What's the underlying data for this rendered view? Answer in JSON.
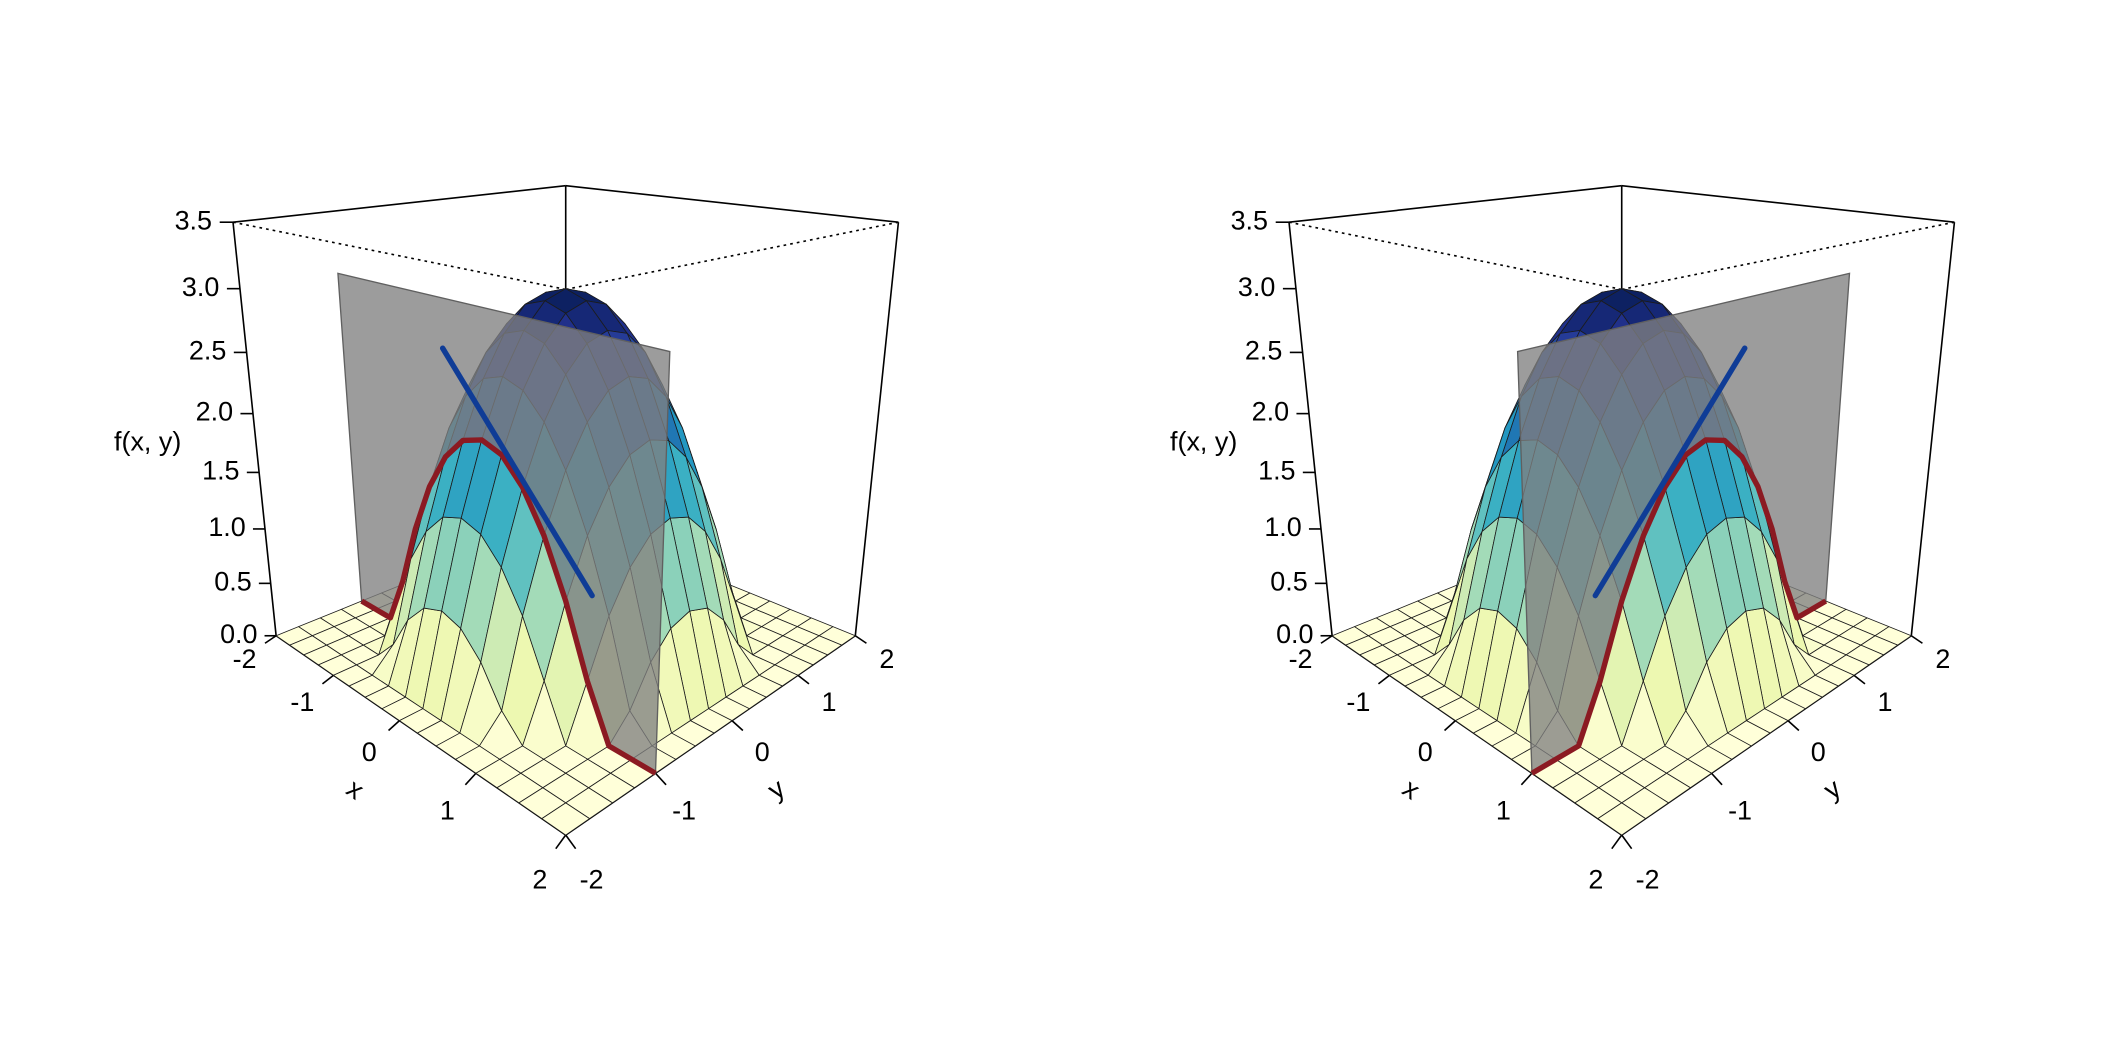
{
  "chart_data": [
    {
      "type": "surface3d",
      "xlabel": "x",
      "ylabel": "y",
      "zlabel": "f(x, y)",
      "xlim": [
        -2,
        2
      ],
      "ylim": [
        -2,
        2
      ],
      "zlim": [
        0,
        3.5
      ],
      "xticks": [
        -2,
        -1,
        0,
        1,
        2
      ],
      "yticks": [
        -2,
        -1,
        0,
        1,
        2
      ],
      "zticks": [
        {
          "value": 0,
          "label": "0.0"
        },
        0.5,
        {
          "value": 1,
          "label": "1.0"
        },
        1.5,
        {
          "value": 2,
          "label": "2.0"
        },
        2.5,
        {
          "value": 3,
          "label": "3.0"
        },
        3.5
      ],
      "colors": [
        "#ffffd9",
        "#edf8b1",
        "#c7e9b4",
        "#7fcdbb",
        "#41b6c4",
        "#1d91c0",
        "#225ea8",
        "#253494",
        "#081d58"
      ],
      "x": [
        -2,
        -1.75,
        -1.5,
        -1.25,
        -1,
        -0.75,
        -0.5,
        -0.25,
        0,
        0.25,
        0.5,
        0.75,
        1,
        1.25,
        1.5,
        1.75,
        2
      ],
      "y": [
        -2,
        -1.75,
        -1.5,
        -1.25,
        -1,
        -0.75,
        -0.5,
        -0.25,
        0,
        0.25,
        0.5,
        0.75,
        1,
        1.25,
        1.5,
        1.75,
        2
      ],
      "z": [
        [
          0,
          0,
          0,
          0,
          0,
          0,
          0,
          0,
          0,
          0,
          0,
          0,
          0,
          0,
          0,
          0,
          0
        ],
        [
          0,
          0,
          0,
          0,
          0,
          0,
          0,
          0,
          0,
          0,
          0,
          0,
          0,
          0,
          0,
          0,
          0
        ],
        [
          0,
          0,
          0,
          0,
          0,
          0.19,
          0.5,
          0.69,
          0.75,
          0.69,
          0.5,
          0.19,
          0,
          0,
          0,
          0,
          0
        ],
        [
          0,
          0,
          0,
          0,
          0.44,
          0.88,
          1.19,
          1.38,
          1.44,
          1.38,
          1.19,
          0.88,
          0.44,
          0,
          0,
          0,
          0
        ],
        [
          0,
          0,
          0,
          0.44,
          1,
          1.44,
          1.75,
          1.94,
          2,
          1.94,
          1.75,
          1.44,
          1,
          0.44,
          0,
          0,
          0
        ],
        [
          0,
          0,
          0.19,
          0.88,
          1.44,
          1.88,
          2.19,
          2.38,
          2.44,
          2.38,
          2.19,
          1.88,
          1.44,
          0.88,
          0.19,
          0,
          0
        ],
        [
          0,
          0,
          0.5,
          1.19,
          1.75,
          2.19,
          2.5,
          2.69,
          2.75,
          2.69,
          2.5,
          2.19,
          1.75,
          1.19,
          0.5,
          0,
          0
        ],
        [
          0,
          0,
          0.69,
          1.38,
          1.94,
          2.38,
          2.69,
          2.88,
          2.94,
          2.88,
          2.69,
          2.38,
          1.94,
          1.38,
          0.69,
          0,
          0
        ],
        [
          0,
          0,
          0.75,
          1.44,
          2,
          2.44,
          2.75,
          2.94,
          3,
          2.94,
          2.75,
          2.44,
          2,
          1.44,
          0.75,
          0,
          0
        ],
        [
          0,
          0,
          0.69,
          1.38,
          1.94,
          2.38,
          2.69,
          2.88,
          2.94,
          2.88,
          2.69,
          2.38,
          1.94,
          1.38,
          0.69,
          0,
          0
        ],
        [
          0,
          0,
          0.5,
          1.19,
          1.75,
          2.19,
          2.5,
          2.69,
          2.75,
          2.69,
          2.5,
          2.19,
          1.75,
          1.19,
          0.5,
          0,
          0
        ],
        [
          0,
          0,
          0.19,
          0.88,
          1.44,
          1.88,
          2.19,
          2.38,
          2.44,
          2.38,
          2.19,
          1.88,
          1.44,
          0.88,
          0.19,
          0,
          0
        ],
        [
          0,
          0,
          0,
          0.44,
          1,
          1.44,
          1.75,
          1.94,
          2,
          1.94,
          1.75,
          1.44,
          1,
          0.44,
          0,
          0,
          0
        ],
        [
          0,
          0,
          0,
          0,
          0.44,
          0.88,
          1.19,
          1.38,
          1.44,
          1.38,
          1.19,
          0.88,
          0.44,
          0,
          0,
          0,
          0
        ],
        [
          0,
          0,
          0,
          0,
          0,
          0.19,
          0.5,
          0.69,
          0.75,
          0.69,
          0.5,
          0.19,
          0,
          0,
          0,
          0,
          0
        ],
        [
          0,
          0,
          0,
          0,
          0,
          0,
          0,
          0,
          0,
          0,
          0,
          0,
          0,
          0,
          0,
          0,
          0
        ],
        [
          0,
          0,
          0,
          0,
          0,
          0,
          0,
          0,
          0,
          0,
          0,
          0,
          0,
          0,
          0,
          0,
          0
        ]
      ],
      "slice": {
        "axis": "y",
        "value": -1,
        "zmax": 3,
        "color": "#808080",
        "curve_color": "#8b1a22"
      },
      "tangent": {
        "x": [
          -1.75,
          0.35
        ],
        "y": [
          0,
          0
        ],
        "z": [
          2.25,
          0.5
        ],
        "color": "#0f3c96"
      }
    },
    {
      "type": "surface3d",
      "xlabel": "x",
      "ylabel": "y",
      "zlabel": "f(x, y)",
      "xlim": [
        -2,
        2
      ],
      "ylim": [
        -2,
        2
      ],
      "zlim": [
        0,
        3.5
      ],
      "xticks": [
        -2,
        -1,
        0,
        1,
        2
      ],
      "yticks": [
        -2,
        -1,
        0,
        1,
        2
      ],
      "zticks": [
        {
          "value": 0,
          "label": "0.0"
        },
        0.5,
        {
          "value": 1,
          "label": "1.0"
        },
        1.5,
        {
          "value": 2,
          "label": "2.0"
        },
        2.5,
        {
          "value": 3,
          "label": "3.0"
        },
        3.5
      ],
      "colors": [
        "#ffffd9",
        "#edf8b1",
        "#c7e9b4",
        "#7fcdbb",
        "#41b6c4",
        "#1d91c0",
        "#225ea8",
        "#253494",
        "#081d58"
      ],
      "x": [
        -2,
        -1.75,
        -1.5,
        -1.25,
        -1,
        -0.75,
        -0.5,
        -0.25,
        0,
        0.25,
        0.5,
        0.75,
        1,
        1.25,
        1.5,
        1.75,
        2
      ],
      "y": [
        -2,
        -1.75,
        -1.5,
        -1.25,
        -1,
        -0.75,
        -0.5,
        -0.25,
        0,
        0.25,
        0.5,
        0.75,
        1,
        1.25,
        1.5,
        1.75,
        2
      ],
      "z": [
        [
          0,
          0,
          0,
          0,
          0,
          0,
          0,
          0,
          0,
          0,
          0,
          0,
          0,
          0,
          0,
          0,
          0
        ],
        [
          0,
          0,
          0,
          0,
          0,
          0,
          0,
          0,
          0,
          0,
          0,
          0,
          0,
          0,
          0,
          0,
          0
        ],
        [
          0,
          0,
          0,
          0,
          0,
          0.19,
          0.5,
          0.69,
          0.75,
          0.69,
          0.5,
          0.19,
          0,
          0,
          0,
          0,
          0
        ],
        [
          0,
          0,
          0,
          0,
          0.44,
          0.88,
          1.19,
          1.38,
          1.44,
          1.38,
          1.19,
          0.88,
          0.44,
          0,
          0,
          0,
          0
        ],
        [
          0,
          0,
          0,
          0.44,
          1,
          1.44,
          1.75,
          1.94,
          2,
          1.94,
          1.75,
          1.44,
          1,
          0.44,
          0,
          0,
          0
        ],
        [
          0,
          0,
          0.19,
          0.88,
          1.44,
          1.88,
          2.19,
          2.38,
          2.44,
          2.38,
          2.19,
          1.88,
          1.44,
          0.88,
          0.19,
          0,
          0
        ],
        [
          0,
          0,
          0.5,
          1.19,
          1.75,
          2.19,
          2.5,
          2.69,
          2.75,
          2.69,
          2.5,
          2.19,
          1.75,
          1.19,
          0.5,
          0,
          0
        ],
        [
          0,
          0,
          0.69,
          1.38,
          1.94,
          2.38,
          2.69,
          2.88,
          2.94,
          2.88,
          2.69,
          2.38,
          1.94,
          1.38,
          0.69,
          0,
          0
        ],
        [
          0,
          0,
          0.75,
          1.44,
          2,
          2.44,
          2.75,
          2.94,
          3,
          2.94,
          2.75,
          2.44,
          2,
          1.44,
          0.75,
          0,
          0
        ],
        [
          0,
          0,
          0.69,
          1.38,
          1.94,
          2.38,
          2.69,
          2.88,
          2.94,
          2.88,
          2.69,
          2.38,
          1.94,
          1.38,
          0.69,
          0,
          0
        ],
        [
          0,
          0,
          0.5,
          1.19,
          1.75,
          2.19,
          2.5,
          2.69,
          2.75,
          2.69,
          2.5,
          2.19,
          1.75,
          1.19,
          0.5,
          0,
          0
        ],
        [
          0,
          0,
          0.19,
          0.88,
          1.44,
          1.88,
          2.19,
          2.38,
          2.44,
          2.38,
          2.19,
          1.88,
          1.44,
          0.88,
          0.19,
          0,
          0
        ],
        [
          0,
          0,
          0,
          0.44,
          1,
          1.44,
          1.75,
          1.94,
          2,
          1.94,
          1.75,
          1.44,
          1,
          0.44,
          0,
          0,
          0
        ],
        [
          0,
          0,
          0,
          0,
          0.44,
          0.88,
          1.19,
          1.38,
          1.44,
          1.38,
          1.19,
          0.88,
          0.44,
          0,
          0,
          0,
          0
        ],
        [
          0,
          0,
          0,
          0,
          0,
          0.19,
          0.5,
          0.69,
          0.75,
          0.69,
          0.5,
          0.19,
          0,
          0,
          0,
          0,
          0
        ],
        [
          0,
          0,
          0,
          0,
          0,
          0,
          0,
          0,
          0,
          0,
          0,
          0,
          0,
          0,
          0,
          0,
          0
        ],
        [
          0,
          0,
          0,
          0,
          0,
          0,
          0,
          0,
          0,
          0,
          0,
          0,
          0,
          0,
          0,
          0,
          0
        ]
      ],
      "slice": {
        "axis": "x",
        "value": 1,
        "zmax": 3,
        "color": "#808080",
        "curve_color": "#8b1a22"
      },
      "tangent": {
        "x": [
          0,
          0
        ],
        "y": [
          1.75,
          -0.35
        ],
        "z": [
          2.25,
          0.5
        ],
        "color": "#0f3c96"
      }
    }
  ]
}
